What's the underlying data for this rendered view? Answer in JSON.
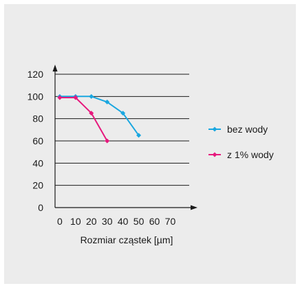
{
  "chart_data": {
    "type": "line",
    "title": "",
    "xlabel": "Rozmiar cząstek [µm]",
    "ylabel": "",
    "x_ticks": [
      "0",
      "10",
      "20",
      "30",
      "40",
      "50",
      "60",
      "70"
    ],
    "y_ticks": [
      "0",
      "20",
      "40",
      "60",
      "80",
      "100",
      "120"
    ],
    "xlim": [
      -3,
      82
    ],
    "ylim": [
      0,
      120
    ],
    "grid": "horizontal",
    "legend_position": "right",
    "series": [
      {
        "name": "bez wody",
        "color": "#1aa7e0",
        "marker": "diamond",
        "x": [
          0,
          10,
          20,
          30,
          40,
          50
        ],
        "y": [
          100,
          100,
          100,
          95,
          85,
          65
        ]
      },
      {
        "name": "z 1% wody",
        "color": "#e6197d",
        "marker": "diamond",
        "x": [
          0,
          10,
          20,
          30
        ],
        "y": [
          99,
          99,
          85,
          60
        ]
      }
    ]
  },
  "colors": {
    "panel_background": "#ececec",
    "chart_background": "#ffffff",
    "axis": "#1a1a1a",
    "gridline": "#1a1a1a"
  }
}
